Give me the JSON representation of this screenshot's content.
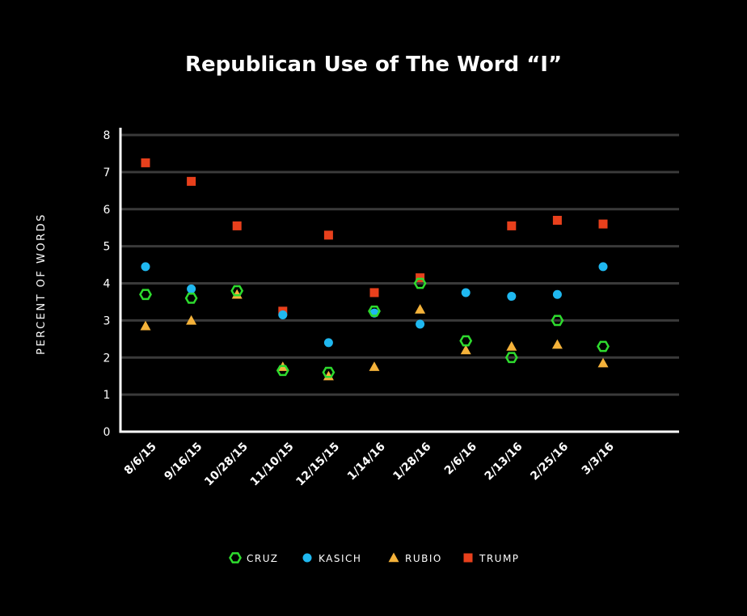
{
  "chart_data": {
    "type": "scatter",
    "title": "Republican Use of The Word “I”",
    "xlabel": "",
    "ylabel": "PERCENT OF WORDS",
    "ylim": [
      0,
      8
    ],
    "yticks": [
      "0",
      "1",
      "2",
      "3",
      "4",
      "5",
      "6",
      "7",
      "8"
    ],
    "grid": true,
    "legend_position": "bottom",
    "categories": [
      "8/6/15",
      "9/16/15",
      "10/28/15",
      "11/10/15",
      "12/15/15",
      "1/14/16",
      "1/28/16",
      "2/6/16",
      "2/13/16",
      "2/25/16",
      "3/3/16"
    ],
    "series": [
      {
        "name": "CRUZ",
        "marker": "hexagon-open",
        "color": "#2edb2e",
        "values": [
          3.7,
          3.6,
          3.8,
          1.65,
          1.6,
          3.25,
          4.0,
          2.45,
          2.0,
          3.0,
          2.3
        ]
      },
      {
        "name": "KASICH",
        "marker": "circle",
        "color": "#1fb8f0",
        "values": [
          4.45,
          3.85,
          null,
          3.15,
          2.4,
          3.2,
          2.9,
          3.75,
          3.65,
          3.7,
          4.45
        ]
      },
      {
        "name": "RUBIO",
        "marker": "triangle",
        "color": "#f4b23a",
        "values": [
          2.85,
          3.0,
          3.7,
          1.75,
          1.5,
          1.75,
          3.3,
          2.2,
          2.3,
          2.35,
          1.85
        ]
      },
      {
        "name": "TRUMP",
        "marker": "square",
        "color": "#e8401c",
        "values": [
          7.25,
          6.75,
          5.55,
          3.25,
          5.3,
          3.75,
          4.15,
          null,
          5.55,
          5.7,
          5.6
        ]
      }
    ]
  }
}
